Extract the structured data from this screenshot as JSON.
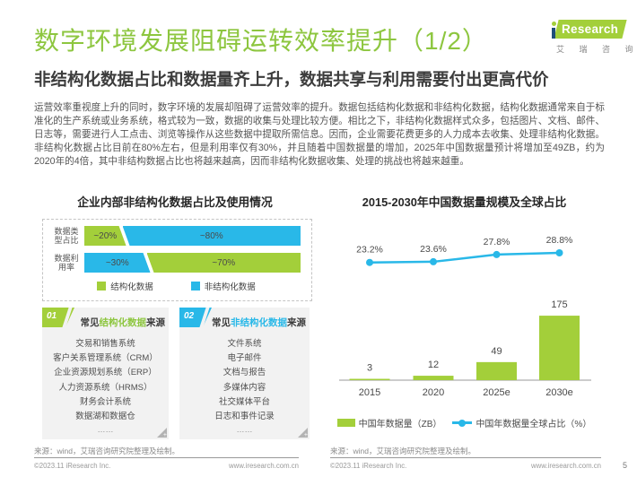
{
  "page": {
    "title": "数字环境发展阻碍运转效率提升（1/2）",
    "subtitle": "非结构化数据占比和数据量齐上升，数据共享与利用需要付出更高代价",
    "intro": "运营效率重视度上升的同时，数字环境的发展却阻碍了运营效率的提升。数据包括结构化数据和非结构化数据，结构化数据通常来自于标准化的生产系统或业务系统，格式较为一致，数据的收集与处理比较方便。相比之下，非结构化数据样式众多，包括图片、文档、邮件、日志等，需要进行人工点击、浏览等操作从这些数据中提取所需信息。因而，企业需要花费更多的人力成本去收集、处理非结构化数据。非结构化数据占比目前在80%左右，但是利用率仅有30%，并且随着中国数据量的增加，2025年中国数据量预计将增加至49ZB，约为2020年的4倍，其中非结构数据占比也将越来越高，因而非结构化数据收集、处理的挑战也将越来越重。",
    "page_number": "5"
  },
  "logo": {
    "research": "Research",
    "cn": "艾 瑞 咨 询"
  },
  "colors": {
    "green": "#a3cf3a",
    "cyan": "#29b8e8",
    "title_green": "#8dc63f",
    "axis_gray": "#999999",
    "label_gray": "#4a4a4a"
  },
  "series_colors": {
    "结构化数据": "#a3cf3a",
    "非结构化数据": "#29b8e8"
  },
  "chart_data": [
    {
      "type": "bar",
      "subtype": "horizontal-stacked",
      "title": "企业内部非结构化数据占比及使用情况",
      "categories": [
        "数据类型占比",
        "数据利用率"
      ],
      "rows": [
        {
          "category": "数据类型占比",
          "label_lines": [
            "数据类",
            "型占比"
          ],
          "segments": [
            {
              "series": "结构化数据",
              "value_label": "~20%",
              "pct": 19
            },
            {
              "series": "非结构化数据",
              "value_label": "~80%",
              "pct": 81
            }
          ]
        },
        {
          "category": "数据利用率",
          "label_lines": [
            "数据利",
            "用率"
          ],
          "segments": [
            {
              "series": "非结构化数据",
              "value_label": "~30%",
              "pct": 30
            },
            {
              "series": "结构化数据",
              "value_label": "~70%",
              "pct": 70
            }
          ]
        }
      ],
      "legend": [
        "结构化数据",
        "非结构化数据"
      ],
      "legend_position": "bottom"
    },
    {
      "type": "bar",
      "subtype": "bar+line-combo",
      "title": "2015-2030年中国数据量规模及全球占比",
      "categories": [
        "2015",
        "2020",
        "2025e",
        "2030e"
      ],
      "series": [
        {
          "name": "中国年数据量（ZB）",
          "type": "bar",
          "values": [
            3,
            12,
            49,
            175
          ]
        },
        {
          "name": "中国年数据量全球占比（%）",
          "type": "line",
          "values": [
            23.2,
            23.6,
            27.8,
            28.8
          ],
          "value_labels": [
            "23.2%",
            "23.6%",
            "27.8%",
            "28.8%"
          ]
        }
      ],
      "legend_position": "bottom",
      "grid": false
    }
  ],
  "boxes": [
    {
      "num": "01",
      "accent": "green",
      "title_prefix": "常见",
      "title_highlight": "结构化数据",
      "title_suffix": "来源",
      "items": [
        "交易和销售系统",
        "客户关系管理系统（CRM）",
        "企业资源规划系统（ERP）",
        "人力资源系统（HRMS）",
        "财务会计系统",
        "数据湖和数据仓"
      ],
      "more": "……"
    },
    {
      "num": "02",
      "accent": "cyan",
      "title_prefix": "常见",
      "title_highlight": "非结构化数据",
      "title_suffix": "来源",
      "items": [
        "文件系统",
        "电子邮件",
        "文档与报告",
        "多媒体内容",
        "社交媒体平台",
        "日志和事件记录"
      ],
      "more": "……"
    }
  ],
  "icons": {
    "expand": "+"
  },
  "footnotes": {
    "left": "来源：wind，艾瑞咨询研究院整理及绘制。",
    "right": "来源：wind，艾瑞咨询研究院整理及绘制。"
  },
  "footer": {
    "copyright": "©2023.11 iResearch Inc.",
    "url": "www.iresearch.com.cn"
  }
}
